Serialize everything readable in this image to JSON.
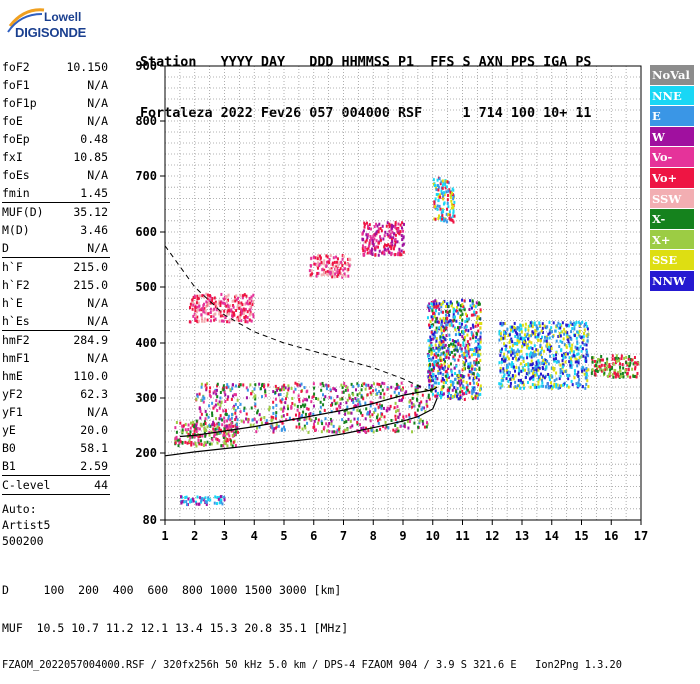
{
  "logo": {
    "line1": "Lowell",
    "line2": "DIGISONDE"
  },
  "header": {
    "line1": "Station   YYYY DAY   DDD HHMMSS P1  FFS S AXN PPS IGA PS",
    "line2": "Fortaleza 2022 Fev26 057 004000 RSF     1 714 100 10+ 11"
  },
  "params": {
    "group1": [
      {
        "name": "foF2",
        "value": "10.150"
      },
      {
        "name": "foF1",
        "value": "N/A"
      },
      {
        "name": "foF1p",
        "value": "N/A"
      },
      {
        "name": "foE",
        "value": "N/A"
      },
      {
        "name": "foEp",
        "value": "0.48"
      },
      {
        "name": "fxI",
        "value": "10.85"
      },
      {
        "name": "foEs",
        "value": "N/A"
      },
      {
        "name": "fmin",
        "value": "1.45"
      }
    ],
    "group2": [
      {
        "name": "MUF(D)",
        "value": "35.12"
      },
      {
        "name": "M(D)",
        "value": "3.46"
      },
      {
        "name": "D",
        "value": "N/A"
      }
    ],
    "group3": [
      {
        "name": "h`F",
        "value": "215.0"
      },
      {
        "name": "h`F2",
        "value": "215.0"
      },
      {
        "name": "h`E",
        "value": "N/A"
      },
      {
        "name": "h`Es",
        "value": "N/A"
      }
    ],
    "group4": [
      {
        "name": "hmF2",
        "value": "284.9"
      },
      {
        "name": "hmF1",
        "value": "N/A"
      },
      {
        "name": "hmE",
        "value": "110.0"
      },
      {
        "name": "yF2",
        "value": "62.3"
      },
      {
        "name": "yF1",
        "value": "N/A"
      },
      {
        "name": "yE",
        "value": "20.0"
      },
      {
        "name": "B0",
        "value": "58.1"
      },
      {
        "name": "B1",
        "value": "2.59"
      }
    ],
    "clevel": {
      "name": "C-level",
      "value": "44"
    },
    "auto": [
      "Auto:",
      "Artist5",
      "500200"
    ]
  },
  "legend": [
    {
      "label": "NoVal",
      "color": "#8c8c8c"
    },
    {
      "label": "NNE",
      "color": "#19d7f5"
    },
    {
      "label": "E",
      "color": "#3a96e6"
    },
    {
      "label": "W",
      "color": "#a0109f"
    },
    {
      "label": "Vo-",
      "color": "#e5339a"
    },
    {
      "label": "Vo+",
      "color": "#ee1543"
    },
    {
      "label": "SSW",
      "color": "#f2aeb2"
    },
    {
      "label": "X-",
      "color": "#15821d"
    },
    {
      "label": "X+",
      "color": "#9ccc44"
    },
    {
      "label": "SSE",
      "color": "#dede12"
    },
    {
      "label": "NNW",
      "color": "#2519d1"
    }
  ],
  "footer": {
    "line1": "D     100  200  400  600  800 1000 1500 3000 [km]",
    "line2": "MUF  10.5 10.7 11.2 12.1 13.4 15.3 20.8 35.1 [MHz]",
    "line3": "FZAOM_2022057004000.RSF / 320fx256h 50 kHz 5.0 km / DPS-4 FZAOM 904 / 3.9 S 321.6 E   Ion2Png 1.3.20"
  },
  "chart_data": {
    "type": "scatter",
    "xlim": [
      1,
      17
    ],
    "ylim": [
      80,
      900
    ],
    "xticks": [
      1,
      2,
      3,
      4,
      5,
      6,
      7,
      8,
      9,
      10,
      11,
      12,
      13,
      14,
      15,
      16,
      17
    ],
    "yticks": [
      80,
      200,
      300,
      400,
      500,
      600,
      700,
      800,
      900
    ],
    "grid": true,
    "trace_line": {
      "x": [
        1.5,
        2,
        3,
        4,
        5,
        6,
        7,
        8,
        9,
        9.5,
        10,
        10.15
      ],
      "y": [
        230,
        232,
        240,
        248,
        258,
        268,
        278,
        290,
        305,
        310,
        315,
        320
      ]
    },
    "profile_line": {
      "x": [
        1,
        2,
        3,
        4,
        5,
        6,
        7,
        8,
        9,
        9.5,
        10,
        10.15
      ],
      "y": [
        195,
        202,
        208,
        214,
        220,
        226,
        235,
        246,
        258,
        266,
        280,
        300
      ]
    },
    "dashed_line": {
      "x": [
        1,
        2,
        3,
        4,
        5,
        6,
        7,
        8,
        9,
        9.6,
        10
      ],
      "y": [
        575,
        500,
        450,
        420,
        400,
        385,
        370,
        355,
        335,
        320,
        310
      ]
    },
    "echo_clusters": [
      {
        "x": [
          1.3,
          3.4
        ],
        "y": [
          215,
          260
        ],
        "colors": [
          "Vo+",
          "Vo-",
          "X+",
          "X-"
        ]
      },
      {
        "x": [
          1.8,
          4.0
        ],
        "y": [
          440,
          490
        ],
        "colors": [
          "Vo+",
          "Vo-",
          "SSW"
        ]
      },
      {
        "x": [
          2.0,
          9.8
        ],
        "y": [
          240,
          330
        ],
        "colors": [
          "Vo+",
          "Vo-",
          "W",
          "X-",
          "X+",
          "E"
        ]
      },
      {
        "x": [
          5.8,
          7.2
        ],
        "y": [
          520,
          560
        ],
        "colors": [
          "Vo+",
          "Vo-",
          "SSW"
        ]
      },
      {
        "x": [
          7.6,
          9.0
        ],
        "y": [
          560,
          620
        ],
        "colors": [
          "Vo+",
          "Vo-",
          "W"
        ]
      },
      {
        "x": [
          10.0,
          10.7
        ],
        "y": [
          620,
          700
        ],
        "colors": [
          "SSE",
          "E",
          "NNE",
          "Vo+"
        ]
      },
      {
        "x": [
          9.8,
          11.6
        ],
        "y": [
          300,
          480
        ],
        "colors": [
          "NNW",
          "E",
          "NNE",
          "W",
          "Vo+",
          "X-",
          "SSE"
        ]
      },
      {
        "x": [
          12.2,
          15.2
        ],
        "y": [
          320,
          440
        ],
        "colors": [
          "NNW",
          "E",
          "NNE",
          "SSE"
        ]
      },
      {
        "x": [
          15.3,
          16.9
        ],
        "y": [
          340,
          380
        ],
        "colors": [
          "X-",
          "X+",
          "Vo+"
        ]
      },
      {
        "x": [
          1.5,
          3.0
        ],
        "y": [
          110,
          125
        ],
        "colors": [
          "E",
          "NNE",
          "W"
        ]
      }
    ]
  }
}
